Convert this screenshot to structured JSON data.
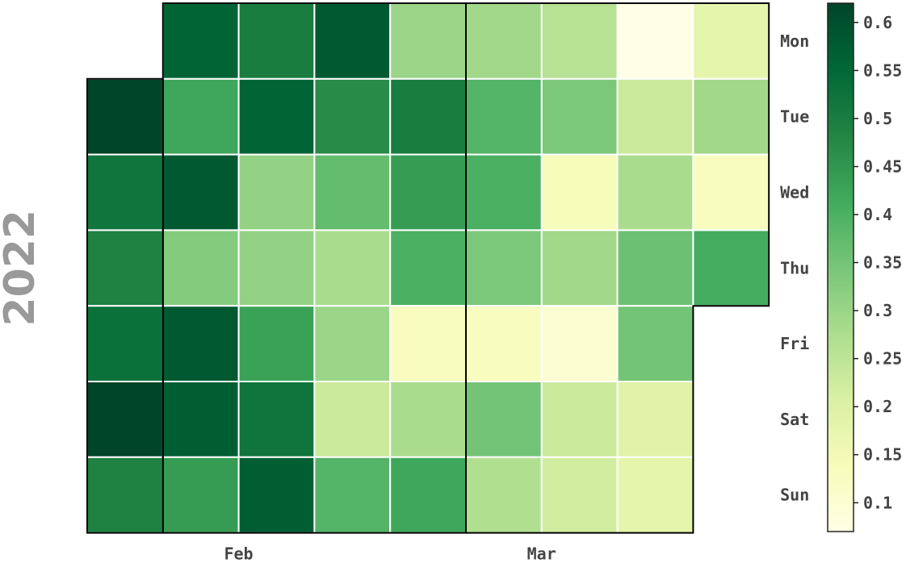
{
  "chart_data": {
    "type": "heatmap",
    "year_label": "2022",
    "weekdays": [
      "Mon",
      "Tue",
      "Wed",
      "Thu",
      "Fri",
      "Sat",
      "Sun"
    ],
    "month_labels": [
      {
        "label": "Feb",
        "week": 2
      },
      {
        "label": "Mar",
        "week": 6
      }
    ],
    "num_weeks": 9,
    "month_boundaries": [
      {
        "week": 1,
        "day": 0
      },
      {
        "week": 5,
        "day": 0
      }
    ],
    "weeks": [
      [
        null,
        0.62,
        0.52,
        0.49,
        0.53,
        0.62,
        0.49
      ],
      [
        0.56,
        0.42,
        0.58,
        0.33,
        0.58,
        0.57,
        0.44
      ],
      [
        0.5,
        0.56,
        0.31,
        0.31,
        0.43,
        0.52,
        0.57
      ],
      [
        0.58,
        0.47,
        0.37,
        0.28,
        0.3,
        0.23,
        0.39
      ],
      [
        0.3,
        0.5,
        0.44,
        0.4,
        0.13,
        0.28,
        0.42
      ],
      [
        0.29,
        0.39,
        0.4,
        0.34,
        0.13,
        0.35,
        0.27
      ],
      [
        0.26,
        0.34,
        0.14,
        0.29,
        0.1,
        0.23,
        0.22
      ],
      [
        0.07,
        0.23,
        0.28,
        0.36,
        0.35,
        0.19,
        0.18
      ],
      [
        0.18,
        0.29,
        0.13,
        0.41,
        null,
        null,
        null
      ]
    ],
    "colorbar": {
      "min": 0.07,
      "max": 0.62,
      "ticks": [
        0.1,
        0.15,
        0.2,
        0.25,
        0.3,
        0.35,
        0.4,
        0.45,
        0.5,
        0.55,
        0.6
      ]
    },
    "colormap": "YlGn",
    "colormap_stops": [
      "#ffffe5",
      "#f7fcb9",
      "#d9f0a3",
      "#addd8e",
      "#78c679",
      "#41ab5d",
      "#238443",
      "#006837",
      "#004529"
    ],
    "cell_edge_color": "#ffffff",
    "month_outline_color": "#000000"
  }
}
